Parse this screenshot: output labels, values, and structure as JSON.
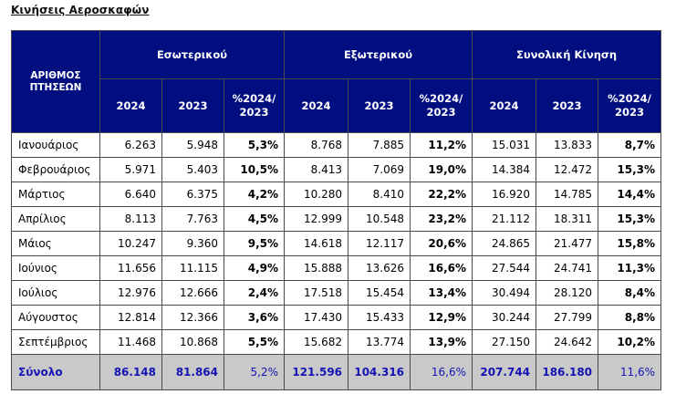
{
  "title": "Κινήσεις Αεροσκαφών",
  "table": {
    "corner_header": "ΑΡΙΘΜΟΣ ΠΤΗΣΕΩΝ",
    "groups": [
      "Εσωτερικού",
      "Εξωτερικού",
      "Συνολική Κίνηση"
    ],
    "subheaders": [
      "2024",
      "2023",
      "%2024/ 2023",
      "2024",
      "2023",
      "%2024/ 2023",
      "2024",
      "2023",
      "%2024/ 2023"
    ],
    "rows": [
      {
        "month": "Ιανουάριος",
        "values": [
          "6.263",
          "5.948",
          "5,3%",
          "8.768",
          "7.885",
          "11,2%",
          "15.031",
          "13.833",
          "8,7%"
        ]
      },
      {
        "month": "Φεβρουάριος",
        "values": [
          "5.971",
          "5.403",
          "10,5%",
          "8.413",
          "7.069",
          "19,0%",
          "14.384",
          "12.472",
          "15,3%"
        ]
      },
      {
        "month": "Μάρτιος",
        "values": [
          "6.640",
          "6.375",
          "4,2%",
          "10.280",
          "8.410",
          "22,2%",
          "16.920",
          "14.785",
          "14,4%"
        ]
      },
      {
        "month": "Απρίλιος",
        "values": [
          "8.113",
          "7.763",
          "4,5%",
          "12.999",
          "10.548",
          "23,2%",
          "21.112",
          "18.311",
          "15,3%"
        ]
      },
      {
        "month": "Μάιος",
        "values": [
          "10.247",
          "9.360",
          "9,5%",
          "14.618",
          "12.117",
          "20,6%",
          "24.865",
          "21.477",
          "15,8%"
        ]
      },
      {
        "month": "Ιούνιος",
        "values": [
          "11.656",
          "11.115",
          "4,9%",
          "15.888",
          "13.626",
          "16,6%",
          "27.544",
          "24.741",
          "11,3%"
        ]
      },
      {
        "month": "Ιούλιος",
        "values": [
          "12.976",
          "12.666",
          "2,4%",
          "17.518",
          "15.454",
          "13,4%",
          "30.494",
          "28.120",
          "8,4%"
        ]
      },
      {
        "month": "Αύγουστος",
        "values": [
          "12.814",
          "12.366",
          "3,6%",
          "17.430",
          "15.433",
          "12,9%",
          "30.244",
          "27.799",
          "8,8%"
        ]
      },
      {
        "month": "Σεπτέμβριος",
        "values": [
          "11.468",
          "10.868",
          "5,5%",
          "15.682",
          "13.774",
          "13,9%",
          "27.150",
          "24.642",
          "10,2%"
        ]
      }
    ],
    "total": {
      "month": "Σύνολο",
      "values": [
        "86.148",
        "81.864",
        "5,2%",
        "121.596",
        "104.316",
        "16,6%",
        "207.744",
        "186.180",
        "11,6%"
      ]
    }
  },
  "colors": {
    "header_bg": "#000e80",
    "total_bg": "#c9c9c9",
    "total_text": "#1414b4"
  }
}
